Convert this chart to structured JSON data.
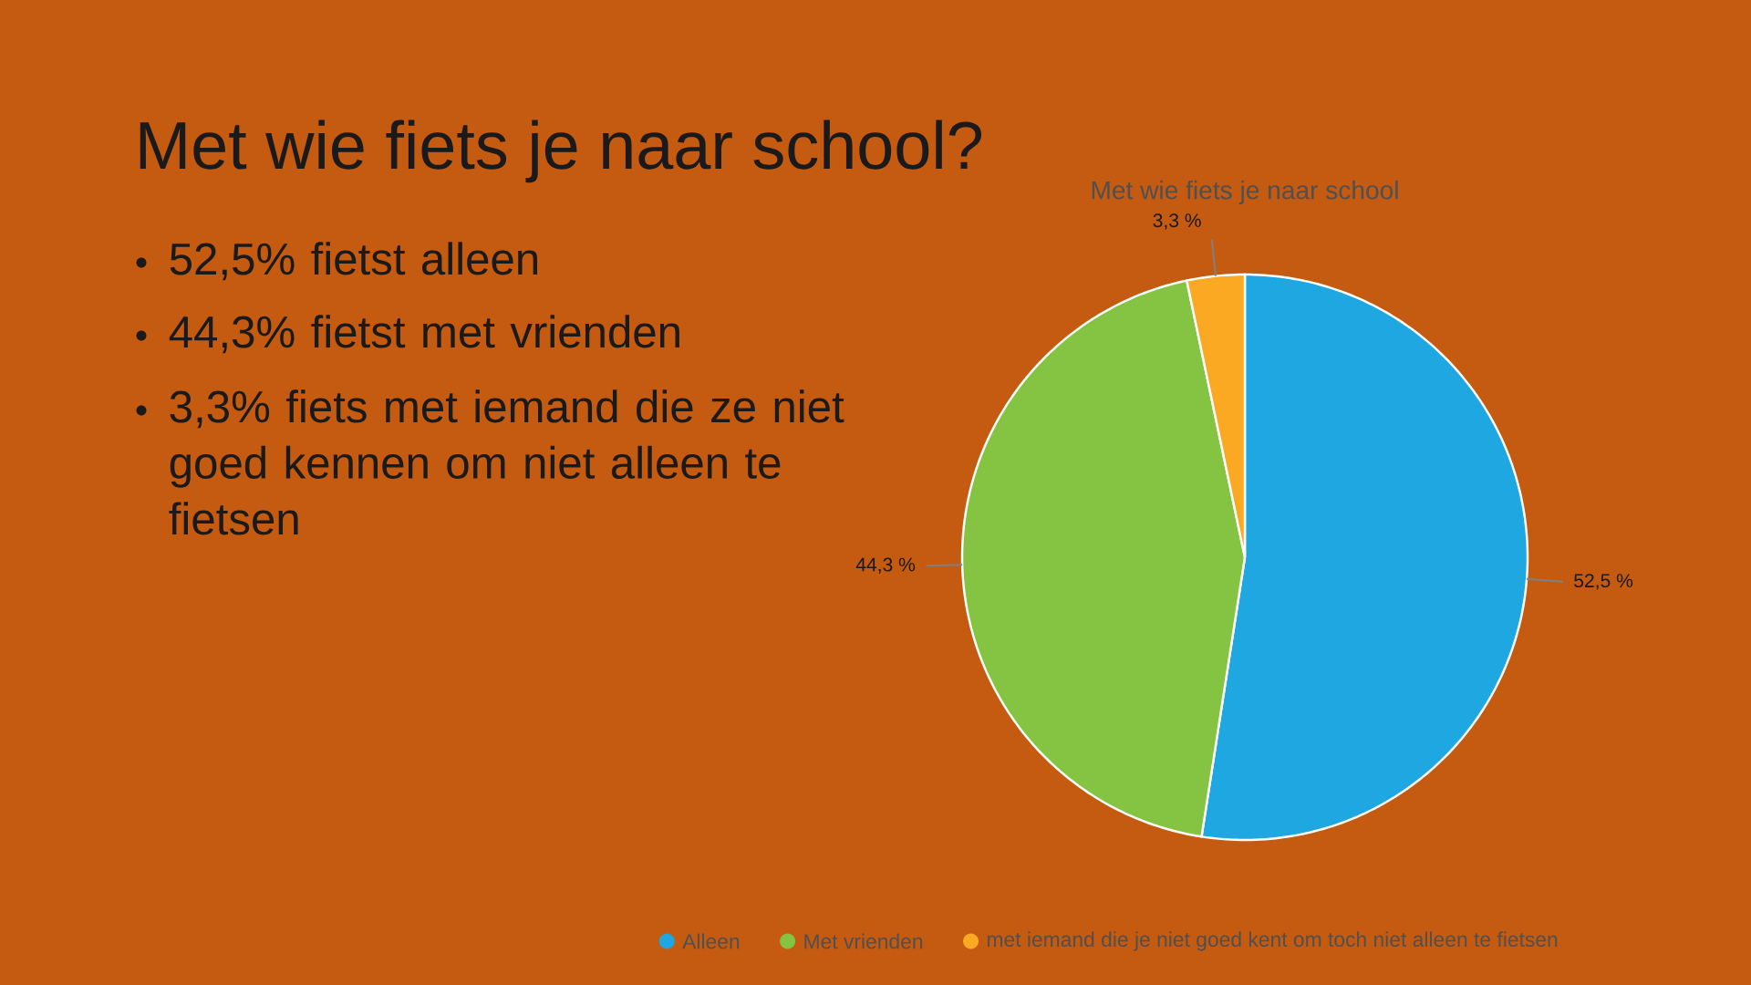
{
  "chart_data": {
    "type": "pie",
    "title": "Met wie fiets je naar school?",
    "subtitle": "Met wie fiets je naar school",
    "categories": [
      "Alleen",
      "Met vrienden",
      "met iemand die je niet goed kent om toch niet alleen te fietsen"
    ],
    "values": [
      52.5,
      44.3,
      3.3
    ],
    "colors": [
      "#1ea7e1",
      "#85c442",
      "#fba823"
    ],
    "value_labels": [
      "52,5 %",
      "44,3 %",
      "3,3 %"
    ],
    "legend": "bottom",
    "annotations": [
      "52,5% fietst alleen",
      "44,3% fietst met vrienden",
      "3,3% fiets met iemand die ze niet goed kennen om niet alleen te fietsen"
    ]
  }
}
